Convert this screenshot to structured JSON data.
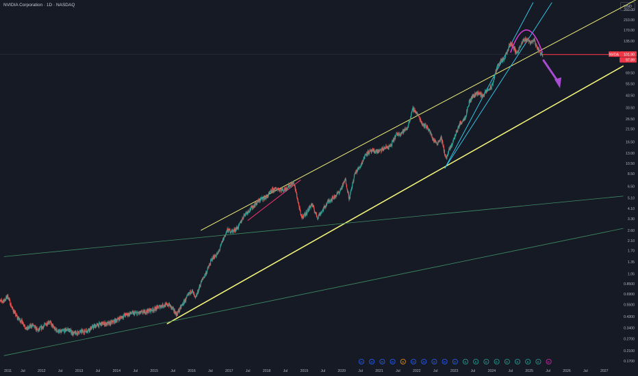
{
  "header": {
    "title": "NVIDIA Corporation · 1D · NASDAQ",
    "currency": "USD"
  },
  "price_badges": {
    "symbol": "NVDA",
    "last": "101.90",
    "secondary": "97.89",
    "badge_color": "#f23645"
  },
  "colors": {
    "background": "#161a25",
    "candle_up": "#26a69a",
    "candle_down": "#ef5350",
    "channel_yellow": "#f2f27a",
    "channel_blue": "#33c3e6",
    "magenta": "#d43fd6",
    "arrow": "#a84cd1",
    "pink_line": "#e8336f",
    "red_line": "#f23645",
    "green_line": "#3f8f66"
  },
  "events": [
    {
      "label": "D",
      "kind": "dividend"
    },
    {
      "label": "D",
      "kind": "dividend"
    },
    {
      "label": "D",
      "kind": "dividend"
    },
    {
      "label": "D",
      "kind": "dividend"
    },
    {
      "label": "S",
      "kind": "split"
    },
    {
      "label": "D",
      "kind": "dividend"
    },
    {
      "label": "D",
      "kind": "dividend"
    },
    {
      "label": "D",
      "kind": "dividend"
    },
    {
      "label": "D",
      "kind": "dividend"
    },
    {
      "label": "D",
      "kind": "dividend"
    },
    {
      "label": "E",
      "kind": "earnings"
    },
    {
      "label": "E",
      "kind": "earnings"
    },
    {
      "label": "E",
      "kind": "earnings"
    },
    {
      "label": "E",
      "kind": "earnings"
    },
    {
      "label": "E",
      "kind": "earnings"
    },
    {
      "label": "E",
      "kind": "earnings"
    },
    {
      "label": "E",
      "kind": "earnings"
    },
    {
      "label": "E",
      "kind": "earnings"
    },
    {
      "label": "E",
      "kind": "earnings"
    }
  ],
  "chart_data": {
    "type": "candlestick",
    "scale": "log",
    "y_ticks": [
      "260.00",
      "210.00",
      "170.00",
      "135.00",
      "101.90",
      "97.89",
      "69.50",
      "55.50",
      "43.50",
      "33.50",
      "26.50",
      "21.50",
      "16.50",
      "13.00",
      "10.50",
      "8.50",
      "6.50",
      "5.10",
      "4.10",
      "3.30",
      "2.60",
      "2.10",
      "1.70",
      "1.35",
      "1.05",
      "0.8500",
      "0.6900",
      "0.5500",
      "0.4300",
      "0.3400",
      "0.2700",
      "0.2100",
      "0.1700"
    ],
    "y_tick_values": [
      260,
      210,
      170,
      135,
      0,
      0,
      69.5,
      55.5,
      43.5,
      33.5,
      26.5,
      21.5,
      16.5,
      13,
      10.5,
      8.5,
      6.5,
      5.1,
      4.1,
      3.3,
      2.6,
      2.1,
      1.7,
      1.35,
      1.05,
      0.85,
      0.69,
      0.55,
      0.43,
      0.34,
      0.27,
      0.21,
      0.17
    ],
    "x_ticks": [
      {
        "label": "2011",
        "t": 2011.0
      },
      {
        "label": "Jul",
        "t": 2011.5
      },
      {
        "label": "2012",
        "t": 2012.0
      },
      {
        "label": "Jul",
        "t": 2012.5
      },
      {
        "label": "2013",
        "t": 2013.0
      },
      {
        "label": "Jul",
        "t": 2013.5
      },
      {
        "label": "2014",
        "t": 2014.0
      },
      {
        "label": "Jul",
        "t": 2014.5
      },
      {
        "label": "2015",
        "t": 2015.0
      },
      {
        "label": "Jul",
        "t": 2015.5
      },
      {
        "label": "2016",
        "t": 2016.0
      },
      {
        "label": "Jul",
        "t": 2016.5
      },
      {
        "label": "2017",
        "t": 2017.0
      },
      {
        "label": "Jul",
        "t": 2017.5
      },
      {
        "label": "2018",
        "t": 2018.0
      },
      {
        "label": "Jul",
        "t": 2018.5
      },
      {
        "label": "2019",
        "t": 2019.0
      },
      {
        "label": "Jul",
        "t": 2019.5
      },
      {
        "label": "2020",
        "t": 2020.0
      },
      {
        "label": "Jul",
        "t": 2020.5
      },
      {
        "label": "2021",
        "t": 2021.0
      },
      {
        "label": "Jul",
        "t": 2021.5
      },
      {
        "label": "2022",
        "t": 2022.0
      },
      {
        "label": "Jul",
        "t": 2022.5
      },
      {
        "label": "2023",
        "t": 2023.0
      },
      {
        "label": "Jul",
        "t": 2023.5
      },
      {
        "label": "2024",
        "t": 2024.0
      },
      {
        "label": "Jul",
        "t": 2024.5
      },
      {
        "label": "2025",
        "t": 2025.0
      },
      {
        "label": "Jul",
        "t": 2025.5
      },
      {
        "label": "2026",
        "t": 2026.0
      },
      {
        "label": "Jul",
        "t": 2026.5
      },
      {
        "label": "2027",
        "t": 2027.0
      }
    ],
    "price_path": [
      [
        2010.85,
        0.58
      ],
      [
        2011.0,
        0.6
      ],
      [
        2011.1,
        0.66
      ],
      [
        2011.2,
        0.52
      ],
      [
        2011.35,
        0.42
      ],
      [
        2011.5,
        0.38
      ],
      [
        2011.6,
        0.33
      ],
      [
        2011.75,
        0.36
      ],
      [
        2011.9,
        0.32
      ],
      [
        2012.0,
        0.34
      ],
      [
        2012.2,
        0.39
      ],
      [
        2012.35,
        0.33
      ],
      [
        2012.5,
        0.31
      ],
      [
        2012.7,
        0.33
      ],
      [
        2012.85,
        0.3
      ],
      [
        2013.0,
        0.31
      ],
      [
        2013.2,
        0.32
      ],
      [
        2013.4,
        0.35
      ],
      [
        2013.6,
        0.37
      ],
      [
        2013.8,
        0.37
      ],
      [
        2014.0,
        0.4
      ],
      [
        2014.2,
        0.44
      ],
      [
        2014.4,
        0.46
      ],
      [
        2014.6,
        0.46
      ],
      [
        2014.8,
        0.48
      ],
      [
        2015.0,
        0.5
      ],
      [
        2015.2,
        0.54
      ],
      [
        2015.4,
        0.55
      ],
      [
        2015.6,
        0.45
      ],
      [
        2015.75,
        0.55
      ],
      [
        2015.9,
        0.66
      ],
      [
        2016.0,
        0.75
      ],
      [
        2016.1,
        0.62
      ],
      [
        2016.25,
        0.88
      ],
      [
        2016.4,
        1.1
      ],
      [
        2016.55,
        1.45
      ],
      [
        2016.7,
        1.6
      ],
      [
        2016.85,
        2.2
      ],
      [
        2016.95,
        2.6
      ],
      [
        2017.1,
        2.55
      ],
      [
        2017.25,
        2.8
      ],
      [
        2017.4,
        3.6
      ],
      [
        2017.55,
        4.0
      ],
      [
        2017.7,
        4.5
      ],
      [
        2017.85,
        5.0
      ],
      [
        2018.0,
        5.2
      ],
      [
        2018.15,
        6.0
      ],
      [
        2018.3,
        6.2
      ],
      [
        2018.45,
        6.0
      ],
      [
        2018.6,
        6.6
      ],
      [
        2018.72,
        7.0
      ],
      [
        2018.8,
        5.4
      ],
      [
        2018.92,
        3.4
      ],
      [
        2019.05,
        3.7
      ],
      [
        2019.2,
        4.5
      ],
      [
        2019.35,
        3.4
      ],
      [
        2019.5,
        4.0
      ],
      [
        2019.65,
        4.8
      ],
      [
        2019.8,
        5.2
      ],
      [
        2019.95,
        5.9
      ],
      [
        2020.1,
        7.5
      ],
      [
        2020.2,
        5.0
      ],
      [
        2020.35,
        8.5
      ],
      [
        2020.5,
        10.0
      ],
      [
        2020.65,
        13.0
      ],
      [
        2020.8,
        13.5
      ],
      [
        2021.0,
        13.5
      ],
      [
        2021.15,
        14.5
      ],
      [
        2021.3,
        15.0
      ],
      [
        2021.45,
        19.0
      ],
      [
        2021.6,
        20.0
      ],
      [
        2021.75,
        22.0
      ],
      [
        2021.9,
        33.0
      ],
      [
        2022.0,
        30.0
      ],
      [
        2022.15,
        24.0
      ],
      [
        2022.3,
        22.0
      ],
      [
        2022.45,
        17.0
      ],
      [
        2022.55,
        16.0
      ],
      [
        2022.65,
        18.0
      ],
      [
        2022.78,
        11.5
      ],
      [
        2022.85,
        13.5
      ],
      [
        2022.95,
        16.0
      ],
      [
        2023.05,
        20.0
      ],
      [
        2023.15,
        24.0
      ],
      [
        2023.3,
        28.0
      ],
      [
        2023.4,
        38.0
      ],
      [
        2023.5,
        43.0
      ],
      [
        2023.62,
        46.0
      ],
      [
        2023.75,
        43.0
      ],
      [
        2023.88,
        48.0
      ],
      [
        2024.0,
        52.0
      ],
      [
        2024.1,
        70.0
      ],
      [
        2024.2,
        88.0
      ],
      [
        2024.32,
        90.0
      ],
      [
        2024.42,
        110.0
      ],
      [
        2024.5,
        130.0
      ],
      [
        2024.58,
        118.0
      ],
      [
        2024.66,
        105.0
      ],
      [
        2024.75,
        118.0
      ],
      [
        2024.85,
        138.0
      ],
      [
        2024.95,
        140.0
      ],
      [
        2025.05,
        130.0
      ],
      [
        2025.12,
        140.0
      ],
      [
        2025.2,
        118.0
      ],
      [
        2025.3,
        105.0
      ],
      [
        2025.36,
        101.9
      ]
    ],
    "lines": [
      {
        "name": "upper-yellow-channel",
        "color": "channel_yellow",
        "width": 1.0,
        "p1": [
          2016.25,
          2.6
        ],
        "p2": [
          2028.0,
          340.0
        ]
      },
      {
        "name": "lower-yellow-channel",
        "color": "channel_yellow",
        "width": 1.6,
        "p1": [
          2015.35,
          0.37
        ],
        "p2": [
          2027.5,
          80.0
        ]
      },
      {
        "name": "pink-trend",
        "color": "pink_line",
        "width": 1.1,
        "p1": [
          2017.5,
          3.2
        ],
        "p2": [
          2018.9,
          7.4
        ]
      },
      {
        "name": "blue-channel-left",
        "color": "channel_blue",
        "width": 1.0,
        "p1": [
          2022.75,
          9.5
        ],
        "p2": [
          2025.1,
          300.0
        ]
      },
      {
        "name": "blue-channel-right",
        "color": "channel_blue",
        "width": 1.0,
        "p1": [
          2022.75,
          9.5
        ],
        "p2": [
          2025.6,
          300.0
        ]
      },
      {
        "name": "green-line-upper",
        "color": "green_line",
        "width": 0.8,
        "p1": [
          2011.0,
          1.5
        ],
        "p2": [
          2027.5,
          5.3
        ]
      },
      {
        "name": "green-line-lower",
        "color": "green_line",
        "width": 0.8,
        "p1": [
          2011.0,
          0.19
        ],
        "p2": [
          2027.5,
          2.7
        ]
      },
      {
        "name": "red-horizontal",
        "color": "red_line",
        "width": 1.1,
        "p1": [
          2025.3,
          101.9
        ],
        "p2": [
          2027.4,
          101.9
        ]
      }
    ],
    "arc": {
      "t0": 2024.5,
      "t1": 2025.35,
      "peak": 170.0,
      "ends": [
        106.0,
        106.0
      ]
    },
    "arrow": {
      "from": [
        2025.38,
        90.0
      ],
      "to": [
        2025.8,
        51.0
      ]
    }
  }
}
